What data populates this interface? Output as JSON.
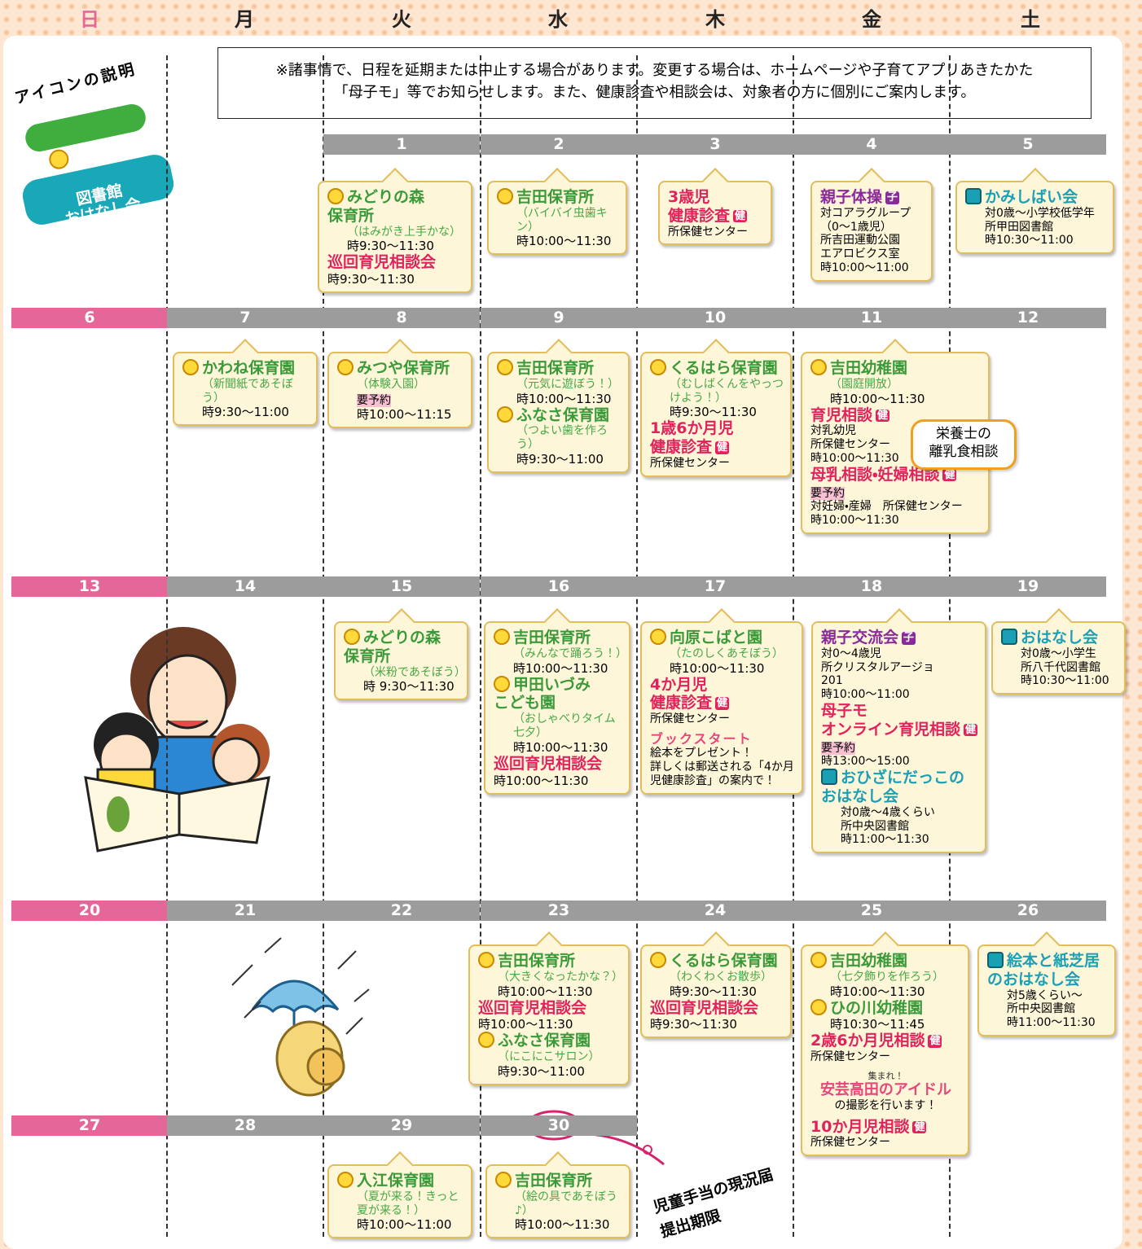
{
  "weekdays": [
    "日",
    "月",
    "火",
    "水",
    "木",
    "金",
    "土"
  ],
  "note": [
    "※諸事情で、日程を延期または中止する場合があります。変更する場合は、ホームページや子育てアプリあきたかた",
    "「母子モ」等でお知らせします。また、健康診査や相談会は、対象者の方に個別にご案内します。"
  ],
  "legend": {
    "title": "アイコンの説明",
    "garden": "園庭開放",
    "library": "図書館\nおはなし会"
  },
  "weeks": [
    [
      null,
      null,
      1,
      2,
      3,
      4,
      5
    ],
    [
      6,
      7,
      8,
      9,
      10,
      11,
      12
    ],
    [
      13,
      14,
      15,
      16,
      17,
      18,
      19
    ],
    [
      20,
      21,
      22,
      23,
      24,
      25,
      26
    ],
    [
      27,
      28,
      29,
      30,
      null,
      null,
      null
    ]
  ],
  "cards": [
    {
      "items": [
        {
          "facility": "みどりの森\n保育所"
        },
        {
          "memo": "（はみがき上手かな）"
        },
        {
          "time": "時9:30～11:30"
        },
        {
          "title": "巡回育児相談会"
        },
        {
          "time": "時9:30～11:30"
        }
      ]
    },
    {
      "items": [
        {
          "facility": "吉田保育所"
        },
        {
          "memo": "（バイバイ虫歯キン）"
        },
        {
          "time": "時10:00～11:30"
        }
      ]
    },
    {
      "items": [
        {
          "title": "3歳児\n健康診査",
          "badge": "健"
        },
        {
          "text": "所保健センター"
        }
      ]
    },
    {
      "items": [
        {
          "title": "親子体操",
          "badge": "子"
        },
        {
          "text": "対コアラグループ"
        },
        {
          "text": "（0～1歳児）"
        },
        {
          "text": "所吉田運動公園"
        },
        {
          "text": "エアロビクス室"
        },
        {
          "text": "時10:00～11:00"
        }
      ]
    },
    {
      "items": [
        {
          "library": "かみしばい会"
        },
        {
          "text": "対0歳～小学校低学年"
        },
        {
          "text": "所甲田図書館"
        },
        {
          "text": "時10:30～11:00"
        }
      ]
    },
    {
      "items": [
        {
          "facility": "かわね保育園"
        },
        {
          "memo": "（新聞紙であそぼう）"
        },
        {
          "time": "時9:30～11:00"
        }
      ]
    },
    {
      "items": [
        {
          "facility": "みつや保育所"
        },
        {
          "memo": "（体験入園）"
        },
        {
          "reserve": "要予約"
        },
        {
          "time": "時10:00～11:15"
        }
      ]
    },
    {
      "items": [
        {
          "facility": "吉田保育所"
        },
        {
          "memo": "（元気に遊ぼう！）"
        },
        {
          "time": "時10:00～11:30"
        },
        {
          "facility": "ふなさ保育園"
        },
        {
          "memo": "（つよい歯を作ろう）"
        },
        {
          "time": "時9:30～11:00"
        }
      ]
    },
    {
      "items": [
        {
          "facility": "くるはら保育園"
        },
        {
          "memo": "（むしばくんをやっつけよう！）"
        },
        {
          "time": "時9:30～11:30"
        },
        {
          "title": "1歳6か月児\n健康診査",
          "badge": "健"
        },
        {
          "text": "所保健センター"
        }
      ]
    },
    {
      "items": [
        {
          "facility": "吉田幼稚園"
        },
        {
          "memo": "（園庭開放）"
        },
        {
          "time": "時10:00～11:30"
        },
        {
          "title": "育児相談",
          "badge": "健"
        },
        {
          "text": "対乳幼児"
        },
        {
          "text": "所保健センター"
        },
        {
          "text": "時10:00～11:30"
        },
        {
          "title": "母乳相談・妊婦相談",
          "badge": "健"
        },
        {
          "reserve": "要予約"
        },
        {
          "text": "対妊婦・産婦　所保健センター"
        },
        {
          "text": "時10:00～11:30"
        }
      ],
      "bubble": "栄養士の\n離乳食相談"
    },
    {
      "items": [
        {
          "facility": "みどりの森\n保育所"
        },
        {
          "memo": "（米粉であそぼう）"
        },
        {
          "time": "時 9:30～11:30"
        }
      ]
    },
    {
      "items": [
        {
          "facility": "吉田保育所"
        },
        {
          "memo": "（みんなで踊ろう！）"
        },
        {
          "time": "時10:00～11:30"
        },
        {
          "facility": "甲田いづみ\nこども園"
        },
        {
          "memo": "（おしゃべりタイム七夕）"
        },
        {
          "time": "時10:00～11:30"
        },
        {
          "title": "巡回育児相談会"
        },
        {
          "time": "時10:00～11:30"
        }
      ]
    },
    {
      "items": [
        {
          "facility": "向原こばと園"
        },
        {
          "memo": "（たのしくあそぼう）"
        },
        {
          "time": "時10:00～11:30"
        },
        {
          "title": "4か月児\n健康診査",
          "badge": "健"
        },
        {
          "text": "所保健センター"
        },
        {
          "bookstart": "ブックスタート"
        },
        {
          "text": "絵本をプレゼント！"
        },
        {
          "text": "詳しくは郵送される「4か月児健康診査」の案内で！"
        }
      ]
    },
    {
      "items": [
        {
          "title": "親子交流会",
          "badge": "子"
        },
        {
          "text": "対0～4歳児"
        },
        {
          "text": "所クリスタルアージョ"
        },
        {
          "text": "201"
        },
        {
          "text": "時10:00～11:00"
        },
        {
          "title": "母子モ\nオンライン育児相談",
          "badge": "健"
        },
        {
          "reserve": "要予約"
        },
        {
          "text": "時13:00～15:00"
        },
        {
          "library": "おひざにだっこの\nおはなし会"
        },
        {
          "text": "対0歳～4歳くらい"
        },
        {
          "text": "所中央図書館"
        },
        {
          "text": "時11:00～11:30"
        }
      ]
    },
    {
      "items": [
        {
          "library": "おはなし会"
        },
        {
          "text": "対0歳～小学生"
        },
        {
          "text": "所八千代図書館"
        },
        {
          "text": "時10:30～11:00"
        }
      ]
    },
    {
      "items": [
        {
          "facility": "吉田保育所"
        },
        {
          "memo": "（大きくなったかな？）"
        },
        {
          "time": "時10:00～11:30"
        },
        {
          "title": "巡回育児相談会"
        },
        {
          "time": "時10:00～11:30"
        },
        {
          "facility": "ふなさ保育園"
        },
        {
          "memo": "（にこにこサロン）"
        },
        {
          "time": "時9:30～11:00"
        }
      ]
    },
    {
      "items": [
        {
          "facility": "くるはら保育園"
        },
        {
          "memo": "（わくわくお散歩）"
        },
        {
          "time": "時9:30～11:30"
        },
        {
          "title": "巡回育児相談会"
        },
        {
          "time": "時9:30～11:30"
        }
      ]
    },
    {
      "items": [
        {
          "facility": "吉田幼稚園"
        },
        {
          "memo": "（七夕飾りを作ろう）"
        },
        {
          "time": "時10:00～11:30"
        },
        {
          "facility": "ひの川幼稚園"
        },
        {
          "time": "時10:30～11:45"
        },
        {
          "title": "2歳6か月児相談",
          "badge": "健"
        },
        {
          "text": "所保健センター"
        },
        {
          "idol_top": "集まれ！"
        },
        {
          "idol": "安芸高田のアイドル"
        },
        {
          "idol_sub": "の撮影を行います！"
        },
        {
          "title": "10か月児相談",
          "badge": "健"
        },
        {
          "text": "所保健センター"
        }
      ]
    },
    {
      "items": [
        {
          "library": "絵本と紙芝居\nのおはなし会"
        },
        {
          "text": "対5歳くらい～"
        },
        {
          "text": "所中央図書館"
        },
        {
          "text": "時11:00～11:30"
        }
      ]
    },
    {
      "items": [
        {
          "facility": "入江保育園"
        },
        {
          "memo": "（夏が来る！きっと夏が来る！）"
        },
        {
          "time": "時10:00～11:00"
        }
      ]
    },
    {
      "items": [
        {
          "facility": "吉田保育所"
        },
        {
          "memo": "（絵の具であそぼう♪）"
        },
        {
          "time": "時10:00～11:30"
        }
      ]
    }
  ],
  "notice": "児童手当の現況届\n提出期限"
}
